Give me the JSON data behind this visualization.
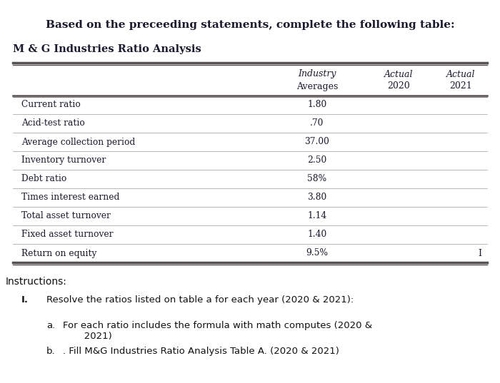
{
  "title_top": "Based on the preceeding statements, complete the following table:",
  "table_title": "M & G Industries Ratio Analysis",
  "col_headers": [
    [
      "Industry",
      "Averages"
    ],
    [
      "Actual",
      "2020"
    ],
    [
      "Actual",
      "2021"
    ]
  ],
  "rows": [
    [
      "Current ratio",
      "1.80",
      "",
      ""
    ],
    [
      "Acid-test ratio",
      ".70",
      "",
      ""
    ],
    [
      "Average collection period",
      "37.00",
      "",
      ""
    ],
    [
      "Inventory turnover",
      "2.50",
      "",
      ""
    ],
    [
      "Debt ratio",
      "58%",
      "",
      ""
    ],
    [
      "Times interest earned",
      "3.80",
      "",
      ""
    ],
    [
      "Total asset turnover",
      "1.14",
      "",
      ""
    ],
    [
      "Fixed asset turnover",
      "1.40",
      "",
      ""
    ],
    [
      "Return on equity",
      "9.5%",
      "",
      ""
    ]
  ],
  "instructions_title": "Instructions:",
  "instruction_I": "I.",
  "instruction_main": "Resolve the ratios listed on table a for each year (2020 & 2021):",
  "instruction_a_label": "a.",
  "instruction_a_text": "For each ratio includes the formula with math computes (2020 &\n       2021)",
  "instruction_b_label": "b.",
  "instruction_b_text": ". Fill M&G Industries Ratio Analysis Table A. (2020 & 2021)",
  "bg_top": "#c8c8c8",
  "bg_bottom": "#e8e6e0",
  "table_bg": "#d8d5cc",
  "line_color_thick": "#555050",
  "line_color_thin": "#888080",
  "text_color_dark": "#1a1a2e",
  "text_color_body": "#111111",
  "cursor_char": "I",
  "fig_width": 7.0,
  "fig_height": 5.37,
  "dpi": 100
}
